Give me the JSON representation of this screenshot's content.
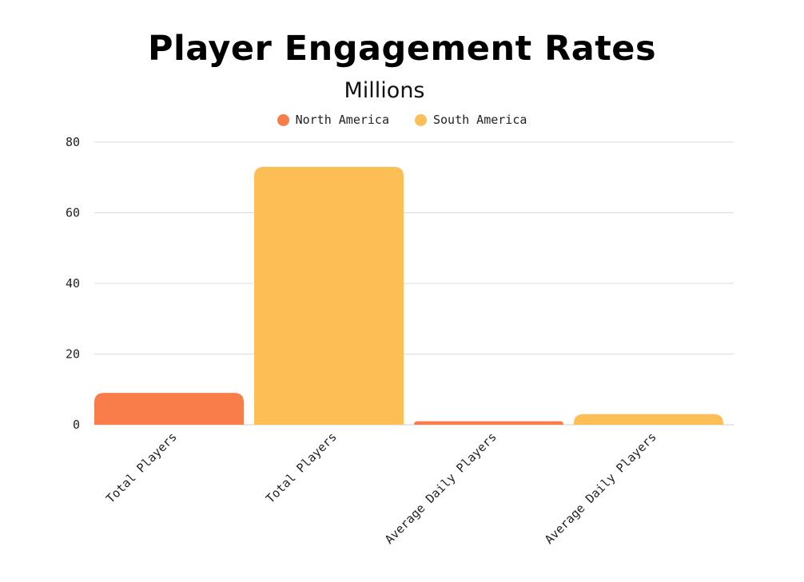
{
  "chart_data": {
    "type": "bar",
    "title": "Player Engagement Rates",
    "subtitle": "Millions",
    "categories": [
      "Total Players",
      "Total Players",
      "Average Daily Players",
      "Average Daily Players"
    ],
    "series": [
      {
        "name": "North America",
        "color": "#F97C4B",
        "values": [
          9,
          null,
          1,
          null
        ]
      },
      {
        "name": "South America",
        "color": "#FDBE55",
        "values": [
          null,
          73,
          null,
          3
        ]
      }
    ],
    "ylim": [
      0,
      80
    ],
    "yticks": [
      0,
      20,
      40,
      60,
      80
    ],
    "grid": true,
    "legend_position": "top-center",
    "xlabel": "",
    "ylabel": ""
  }
}
